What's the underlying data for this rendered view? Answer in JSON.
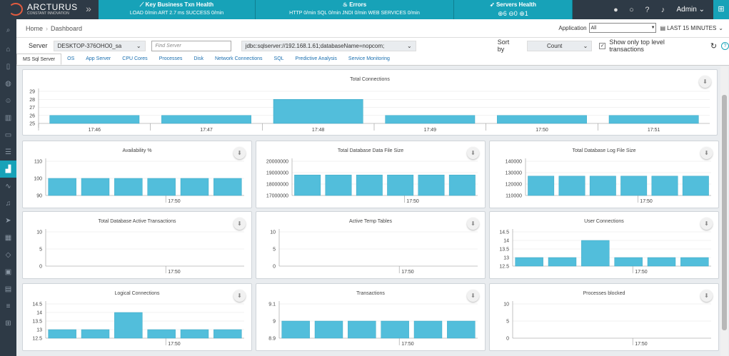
{
  "app": {
    "brand_name": "ARCTURUS",
    "brand_tag": "CONSTANT INNOVATION"
  },
  "header_panels": [
    {
      "title": "Key Business Txn Health",
      "detail": "LOAD 0/min  ART 2.7 ms  SUCCESS 0/min",
      "icon": "trend-icon"
    },
    {
      "title": "Errors",
      "detail": "HTTP 0/min  SQL 0/min  JNDI 0/min  WEB SERVICES 0/min",
      "icon": "flame-icon"
    },
    {
      "title": "Servers Health",
      "detail": "⊕6  ⊖0  ⊕1",
      "icon": "rocket-icon"
    }
  ],
  "user": {
    "name": "Admin"
  },
  "breadcrumb": {
    "home": "Home",
    "current": "Dashboard"
  },
  "application": {
    "label": "Application",
    "value": "All"
  },
  "time_range": {
    "value": "LAST 15 MINUTES"
  },
  "filter": {
    "server_label": "Server",
    "server_value": "DESKTOP-376OHO0_sa",
    "find_placeholder": "Find Server",
    "jdbc_value": "jdbc:sqlserver://192.168.1.61;databaseName=nopcom;",
    "sort_label": "Sort by",
    "sort_value": "Count",
    "toplevel_label": "Show only top level transactions"
  },
  "tabs": [
    "MS Sql Server",
    "OS",
    "App Server",
    "CPU Cores",
    "Processes",
    "Disk",
    "Network Connections",
    "SQL",
    "Predictive Analysis",
    "Service Monitoring"
  ],
  "colors": {
    "accent": "#17a2b8",
    "bar": "#52bedb",
    "sidebar": "#2e3a46"
  },
  "chart_data": [
    {
      "type": "bar",
      "title": "Total Connections",
      "x": [
        "17:46",
        "17:47",
        "17:48",
        "17:49",
        "17:50",
        "17:51"
      ],
      "values": [
        26,
        26,
        28,
        26,
        26,
        26
      ],
      "ylim": [
        25,
        29
      ],
      "yticks": [
        25,
        26,
        27,
        28,
        29
      ],
      "xticks": [
        "17:46",
        "17:47",
        "17:48",
        "17:49",
        "17:50",
        "17:51"
      ]
    },
    {
      "type": "bar",
      "title": "Availability %",
      "values": [
        100,
        100,
        100,
        100,
        100,
        100
      ],
      "ylim": [
        90,
        110
      ],
      "yticks": [
        90,
        100,
        110
      ],
      "xticks": [
        "17:50"
      ]
    },
    {
      "type": "bar",
      "title": "Total Database Data File Size",
      "values": [
        18800000,
        18800000,
        18800000,
        18800000,
        18800000,
        18800000
      ],
      "ylim": [
        17000000,
        20000000
      ],
      "yticks": [
        17000000,
        18000000,
        19000000,
        20000000
      ],
      "xticks": [
        "17:50"
      ]
    },
    {
      "type": "bar",
      "title": "Total Database Log File Size",
      "values": [
        127000,
        127000,
        127000,
        127000,
        127000,
        127000
      ],
      "ylim": [
        110000,
        140000
      ],
      "yticks": [
        110000,
        120000,
        130000,
        140000
      ],
      "xticks": [
        "17:50"
      ]
    },
    {
      "type": "bar",
      "title": "Total Database Active Transactions",
      "values": [
        0,
        0,
        0,
        0,
        0,
        0
      ],
      "ylim": [
        0,
        10
      ],
      "yticks": [
        0,
        5,
        10
      ],
      "xticks": [
        "17:50"
      ]
    },
    {
      "type": "bar",
      "title": "Active Temp Tables",
      "values": [
        0,
        0,
        0,
        0,
        0,
        0
      ],
      "ylim": [
        0,
        10
      ],
      "yticks": [
        0,
        5,
        10
      ],
      "xticks": [
        "17:50"
      ]
    },
    {
      "type": "bar",
      "title": "User Connections",
      "values": [
        13,
        13,
        14,
        13,
        13,
        13
      ],
      "ylim": [
        12.5,
        14.5
      ],
      "yticks": [
        12.5,
        13.0,
        13.5,
        14.0,
        14.5
      ],
      "xticks": [
        "17:50"
      ]
    },
    {
      "type": "bar",
      "title": "Logical Connections",
      "values": [
        13,
        13,
        14,
        13,
        13,
        13
      ],
      "ylim": [
        12.5,
        14.5
      ],
      "yticks": [
        12.5,
        13.0,
        13.5,
        14.0,
        14.5
      ],
      "xticks": [
        "17:50"
      ]
    },
    {
      "type": "bar",
      "title": "Transactions",
      "values": [
        9,
        9,
        9,
        9,
        9,
        9
      ],
      "ylim": [
        8.9,
        9.1
      ],
      "yticks": [
        8.9,
        9.0,
        9.1
      ],
      "xticks": [
        "17:50"
      ]
    },
    {
      "type": "bar",
      "title": "Processes blocked",
      "values": [
        0,
        0,
        0,
        0,
        0,
        0
      ],
      "ylim": [
        0,
        10
      ],
      "yticks": [
        0,
        5,
        10
      ],
      "xticks": [
        "17:50"
      ]
    }
  ]
}
